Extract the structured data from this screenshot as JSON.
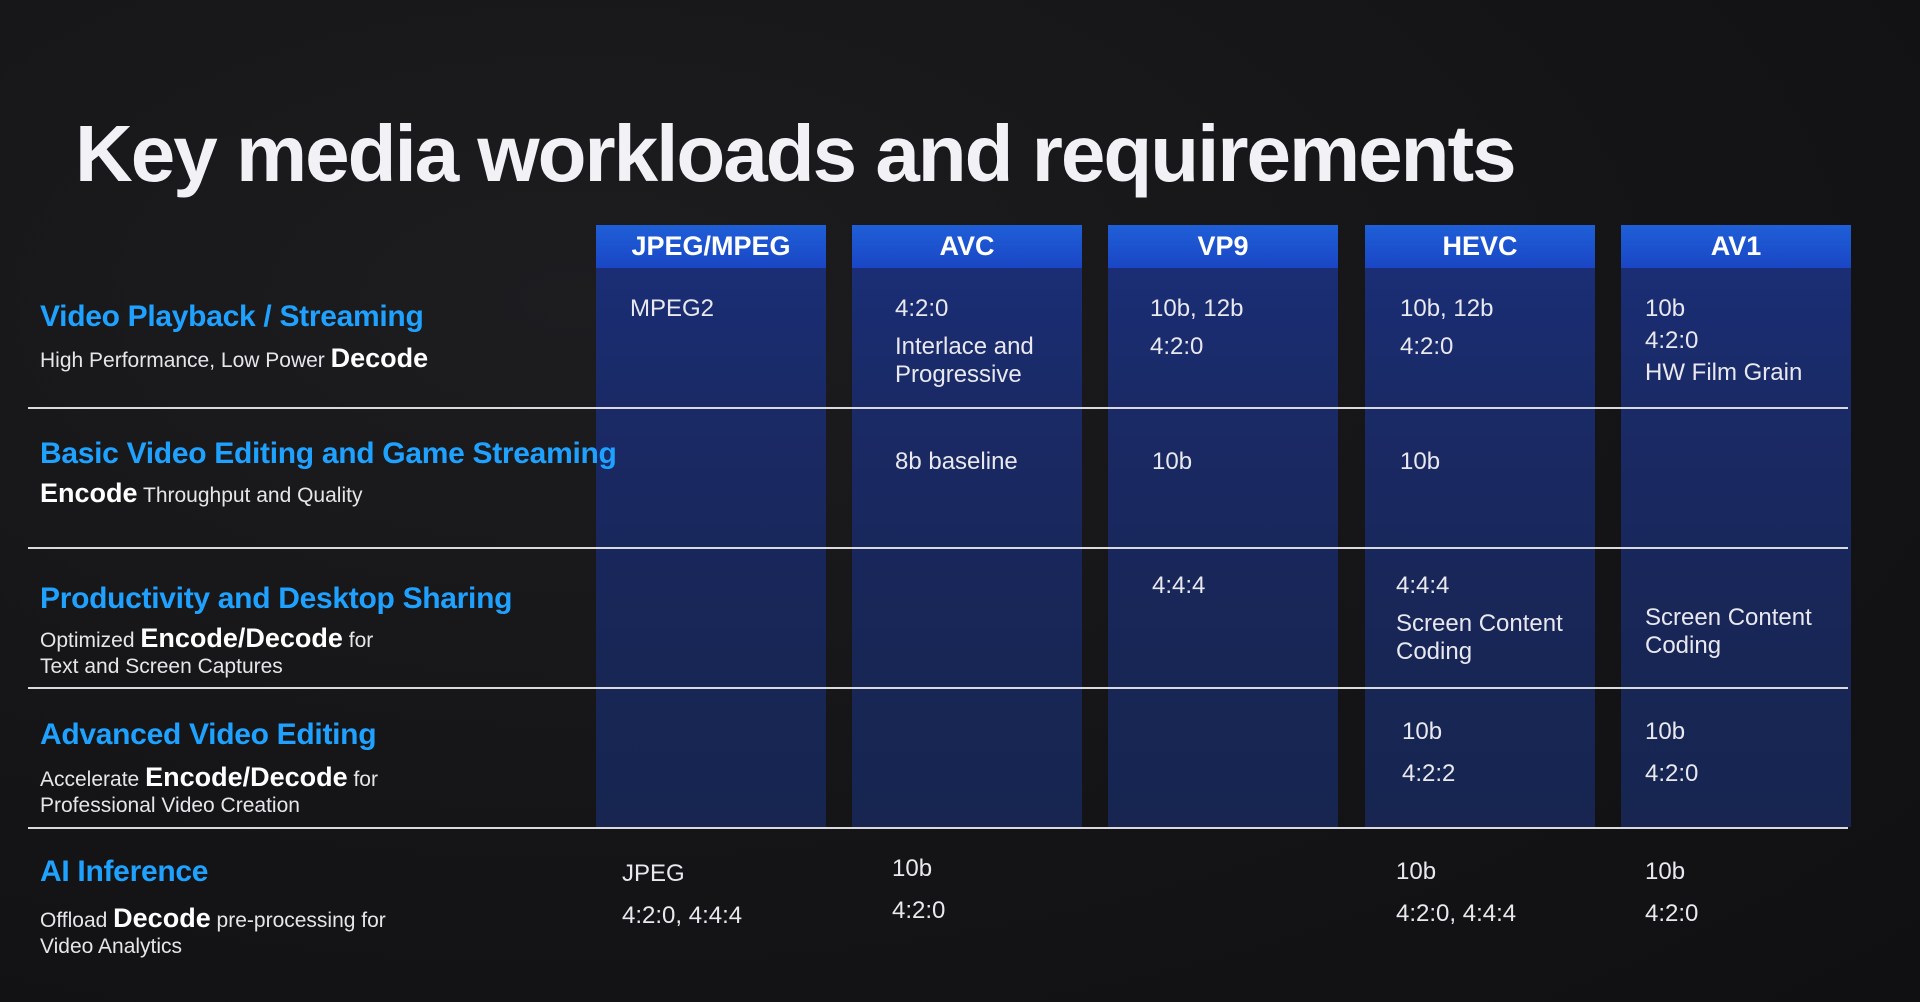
{
  "title": "Key media workloads and requirements",
  "columns": [
    "JPEG/MPEG",
    "AVC",
    "VP9",
    "HEVC",
    "AV1"
  ],
  "rows": [
    {
      "title": "Video Playback / Streaming",
      "sub_before": "High Performance, Low Power ",
      "sub_bold": "Decode",
      "sub_after": "",
      "sub_line2": "",
      "cells": {
        "jpeg": [
          "MPEG2"
        ],
        "avc": [
          "4:2:0",
          "Interlace and Progressive"
        ],
        "vp9": [
          "10b, 12b",
          "4:2:0"
        ],
        "hevc": [
          "10b, 12b",
          "4:2:0"
        ],
        "av1": [
          "10b",
          "4:2:0",
          "HW Film Grain"
        ]
      }
    },
    {
      "title": "Basic Video Editing and Game Streaming",
      "sub_before": "",
      "sub_bold": "Encode",
      "sub_after": " Throughput and Quality",
      "sub_line2": "",
      "cells": {
        "avc": [
          "8b baseline"
        ],
        "vp9": [
          "10b"
        ],
        "hevc": [
          "10b"
        ]
      }
    },
    {
      "title": "Productivity and Desktop Sharing",
      "sub_before": "Optimized ",
      "sub_bold": "Encode/Decode",
      "sub_after": " for",
      "sub_line2": "Text and Screen Captures",
      "cells": {
        "vp9": [
          "4:4:4"
        ],
        "hevc": [
          "4:4:4",
          "Screen Content Coding"
        ],
        "av1": [
          "Screen Content Coding"
        ]
      }
    },
    {
      "title": "Advanced Video Editing",
      "sub_before": "Accelerate ",
      "sub_bold": "Encode/Decode",
      "sub_after": " for",
      "sub_line2": "Professional Video Creation",
      "cells": {
        "hevc": [
          "10b",
          "4:2:2"
        ],
        "av1": [
          "10b",
          "4:2:0"
        ]
      }
    },
    {
      "title": "AI Inference",
      "sub_before": "Offload ",
      "sub_bold": "Decode",
      "sub_after": " pre-processing for",
      "sub_line2": "Video Analytics",
      "cells": {
        "jpeg": [
          "JPEG",
          "4:2:0, 4:4:4"
        ],
        "avc": [
          "10b",
          "4:2:0"
        ],
        "hevc": [
          "10b",
          "4:2:0, 4:4:4"
        ],
        "av1": [
          "10b",
          "4:2:0"
        ]
      }
    }
  ]
}
